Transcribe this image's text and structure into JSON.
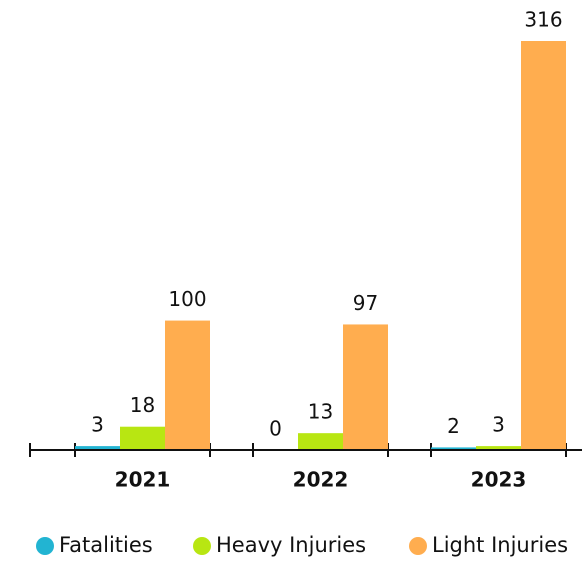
{
  "chart_data": {
    "type": "bar",
    "categories": [
      "2021",
      "2022",
      "2023"
    ],
    "series": [
      {
        "name": "Fatalities",
        "color": "#22b4d2",
        "values": [
          3,
          0,
          2
        ]
      },
      {
        "name": "Heavy Injuries",
        "color": "#b8e612",
        "values": [
          18,
          13,
          3
        ]
      },
      {
        "name": "Light Injuries",
        "color": "#ffad4f",
        "values": [
          100,
          97,
          316
        ]
      }
    ],
    "legend": "bottom"
  }
}
